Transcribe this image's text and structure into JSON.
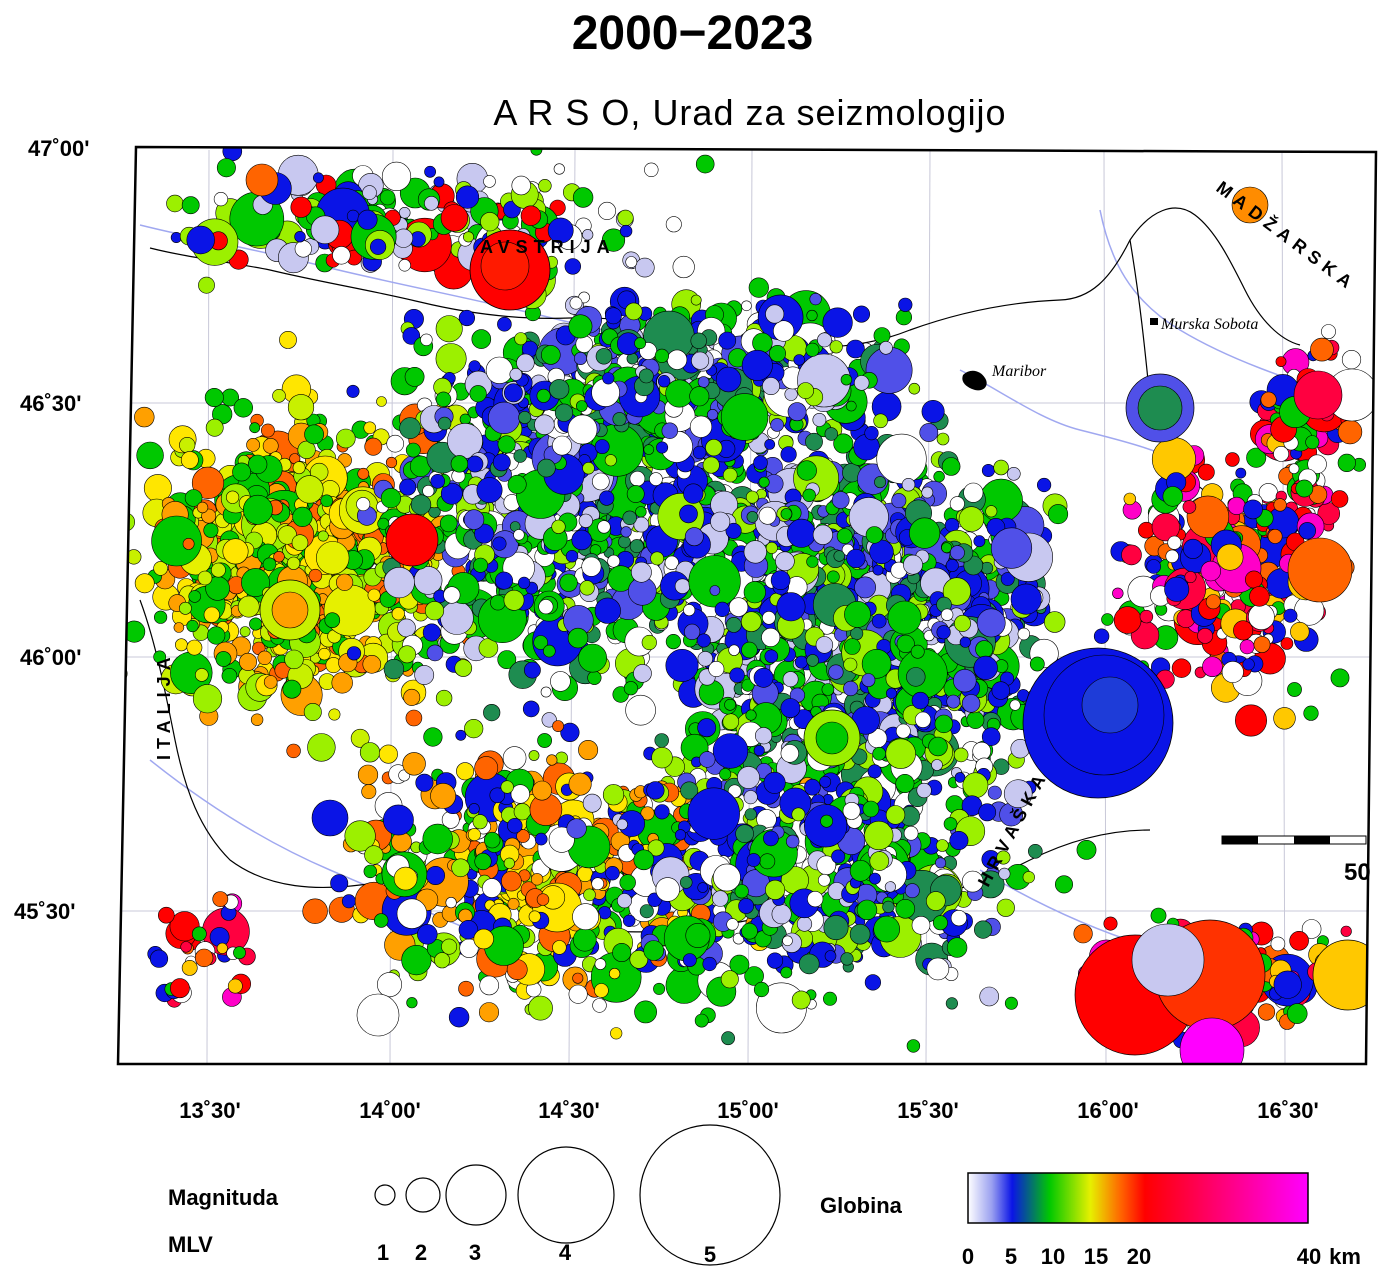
{
  "title": "2000−2023",
  "subtitle": "A R S O,  Urad za seizmologijo",
  "map": {
    "lat_labels": [
      "47˚00'",
      "46˚30'",
      "46˚00'",
      "45˚30'"
    ],
    "lon_labels": [
      "13˚30'",
      "14˚00'",
      "14˚30'",
      "15˚00'",
      "15˚30'",
      "16˚00'",
      "16˚30'"
    ],
    "countries": {
      "austria": "AVSTRIJA",
      "italy": "ITALIJA",
      "hungary": "MADŽARSKA",
      "croatia": "HRVAŠKA"
    },
    "cities": {
      "maribor": "Maribor",
      "murska_sobota": "Murska Sobota"
    },
    "scale_label": "50"
  },
  "legend": {
    "magnitude_title": "Magnituda",
    "magnitude_subtitle": "MLV",
    "magnitudes": [
      "1",
      "2",
      "3",
      "4",
      "5"
    ],
    "depth_title": "Globina",
    "depth_ticks": [
      "0",
      "5",
      "10",
      "15",
      "20",
      "40"
    ],
    "depth_unit": "km",
    "depth_colors": [
      "#dcdcf2",
      "#0a14e6",
      "#00c800",
      "#e6f000",
      "#ff8c00",
      "#ff0000",
      "#ff00c8"
    ]
  }
}
